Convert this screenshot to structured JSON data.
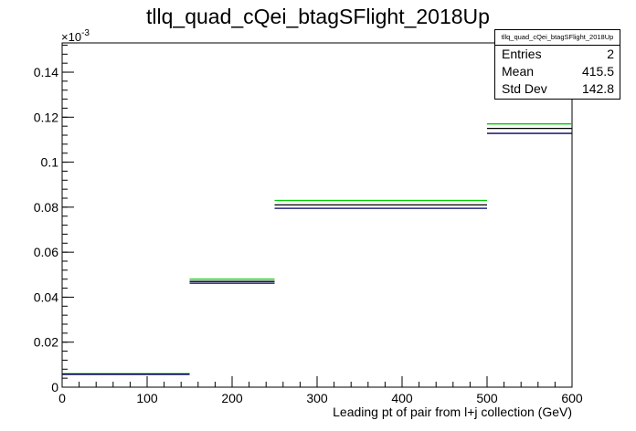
{
  "chart_data": {
    "type": "histogram",
    "title": "tllq_quad_cQei_btagSFlight_2018Up",
    "xlabel": "Leading pt of pair from l+j collection (GeV)",
    "ylabel": "",
    "y_exponent_label": "×10",
    "y_exponent_power": "-3",
    "xlim": [
      0,
      600
    ],
    "ylim": [
      0,
      0.153
    ],
    "bin_edges": [
      0,
      150,
      250,
      500,
      600
    ],
    "series": [
      {
        "color": "#00cc00",
        "values": [
          0.006,
          0.048,
          0.083,
          0.117
        ]
      },
      {
        "color": "#000000",
        "values": [
          0.0058,
          0.047,
          0.081,
          0.115
        ]
      },
      {
        "color": "#000066",
        "values": [
          0.0057,
          0.0462,
          0.0795,
          0.1128
        ]
      }
    ],
    "x_ticks": [
      0,
      100,
      200,
      300,
      400,
      500,
      600
    ],
    "x_tick_labels": [
      "0",
      "100",
      "200",
      "300",
      "400",
      "500",
      "600"
    ],
    "y_ticks": [
      0,
      0.02,
      0.04,
      0.06,
      0.08,
      0.1,
      0.12,
      0.14
    ],
    "y_tick_labels": [
      "0",
      "0.02",
      "0.04",
      "0.06",
      "0.08",
      "0.1",
      "0.12",
      "0.14"
    ]
  },
  "stats": {
    "title": "tllq_quad_cQei_btagSFlight_2018Up",
    "rows": [
      {
        "label": "Entries",
        "value": "2"
      },
      {
        "label": "Mean",
        "value": "415.5"
      },
      {
        "label": "Std Dev",
        "value": "142.8"
      }
    ]
  }
}
